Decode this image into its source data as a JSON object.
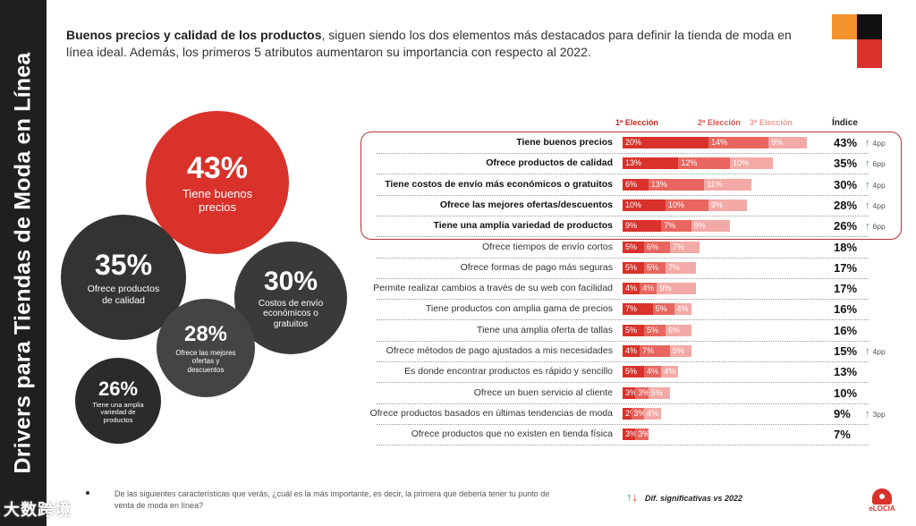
{
  "sidebar_title": "Drivers para Tiendas de Moda en Línea",
  "headline": {
    "bold": "Buenos precios y calidad de los productos",
    "rest": ", siguen siendo los dos elementos más destacados para definir la tienda de moda en línea ideal. Además, los primeros 5 atributos aumentaron su importancia con respecto al 2022."
  },
  "bubbles": [
    {
      "pct": "43%",
      "label": "Tiene buenos precios"
    },
    {
      "pct": "35%",
      "label": "Ofrece productos de calidad"
    },
    {
      "pct": "30%",
      "label": "Costos de envío económicos o gratuitos"
    },
    {
      "pct": "28%",
      "label": "Ofrece las mejores ofertas y descuentos"
    },
    {
      "pct": "26%",
      "label": "Tiene una amplia variedad de productos"
    }
  ],
  "legend": {
    "first": "1ª Elección",
    "second": "2ª Elección",
    "third": "3ª Elección",
    "index": "Índice"
  },
  "colors": {
    "first": "#d8322b",
    "second": "#e8665f",
    "third": "#f3aaa6",
    "accent_orange": "#f2922d",
    "dark": "#1f1f1f",
    "up": "#27a844",
    "down": "#d8322b"
  },
  "chart_data": {
    "type": "bar",
    "stacked": true,
    "orientation": "horizontal",
    "title": "",
    "series_names": [
      "1ª Elección",
      "2ª Elección",
      "3ª Elección"
    ],
    "rows": [
      {
        "label": "Tiene buenos precios",
        "values": [
          20,
          14,
          9
        ],
        "index": "43%",
        "diff": "4pp",
        "top": true
      },
      {
        "label": "Ofrece productos de calidad",
        "values": [
          13,
          12,
          10
        ],
        "index": "35%",
        "diff": "6pp",
        "top": true
      },
      {
        "label": "Tiene costos de envío más económicos o gratuitos",
        "values": [
          6,
          13,
          11
        ],
        "index": "30%",
        "diff": "4pp",
        "top": true
      },
      {
        "label": "Ofrece las mejores ofertas/descuentos",
        "values": [
          10,
          10,
          9
        ],
        "index": "28%",
        "diff": "4pp",
        "top": true
      },
      {
        "label": "Tiene una amplia variedad de productos",
        "values": [
          9,
          7,
          9
        ],
        "index": "26%",
        "diff": "6pp",
        "top": true
      },
      {
        "label": "Ofrece tiempos de envío cortos",
        "values": [
          5,
          6,
          7
        ],
        "index": "18%",
        "diff": "",
        "top": false
      },
      {
        "label": "Ofrece formas de pago más seguras",
        "values": [
          5,
          5,
          7
        ],
        "index": "17%",
        "diff": "",
        "top": false
      },
      {
        "label": "Permite realizar cambios  a través de su web con facilidad",
        "values": [
          4,
          4,
          9
        ],
        "index": "17%",
        "diff": "",
        "top": false
      },
      {
        "label": "Tiene productos con amplia gama de precios",
        "values": [
          7,
          5,
          4
        ],
        "index": "16%",
        "diff": "",
        "top": false
      },
      {
        "label": "Tiene una amplia oferta de tallas",
        "values": [
          5,
          5,
          6
        ],
        "index": "16%",
        "diff": "",
        "top": false
      },
      {
        "label": "Ofrece métodos de pago ajustados a mis necesidades",
        "values": [
          4,
          7,
          5
        ],
        "index": "15%",
        "diff": "4pp",
        "top": false
      },
      {
        "label": "Es donde encontrar productos es rápido y sencillo",
        "values": [
          5,
          4,
          4
        ],
        "index": "13%",
        "diff": "",
        "top": false
      },
      {
        "label": "Ofrece un buen servicio al cliente",
        "values": [
          3,
          3,
          5
        ],
        "index": "10%",
        "diff": "",
        "top": false
      },
      {
        "label": "Ofrece productos basados en últimas tendencias de moda",
        "values": [
          2,
          3,
          4
        ],
        "index": "9%",
        "diff": "3pp",
        "top": false
      },
      {
        "label": "Ofrece productos que no existen en tienda física",
        "values": [
          3,
          3,
          ""
        ],
        "index": "7%",
        "diff": "",
        "top": false
      }
    ]
  },
  "footnote": "De las siguientes características que verás, ¿cuál es la más importante, es decir, la primera que debería tener tu punto de venta de moda en línea?",
  "significance_label": "Dif. significativas vs 2022",
  "logo_text": "eLOCIA",
  "watermark": "大数跨境"
}
